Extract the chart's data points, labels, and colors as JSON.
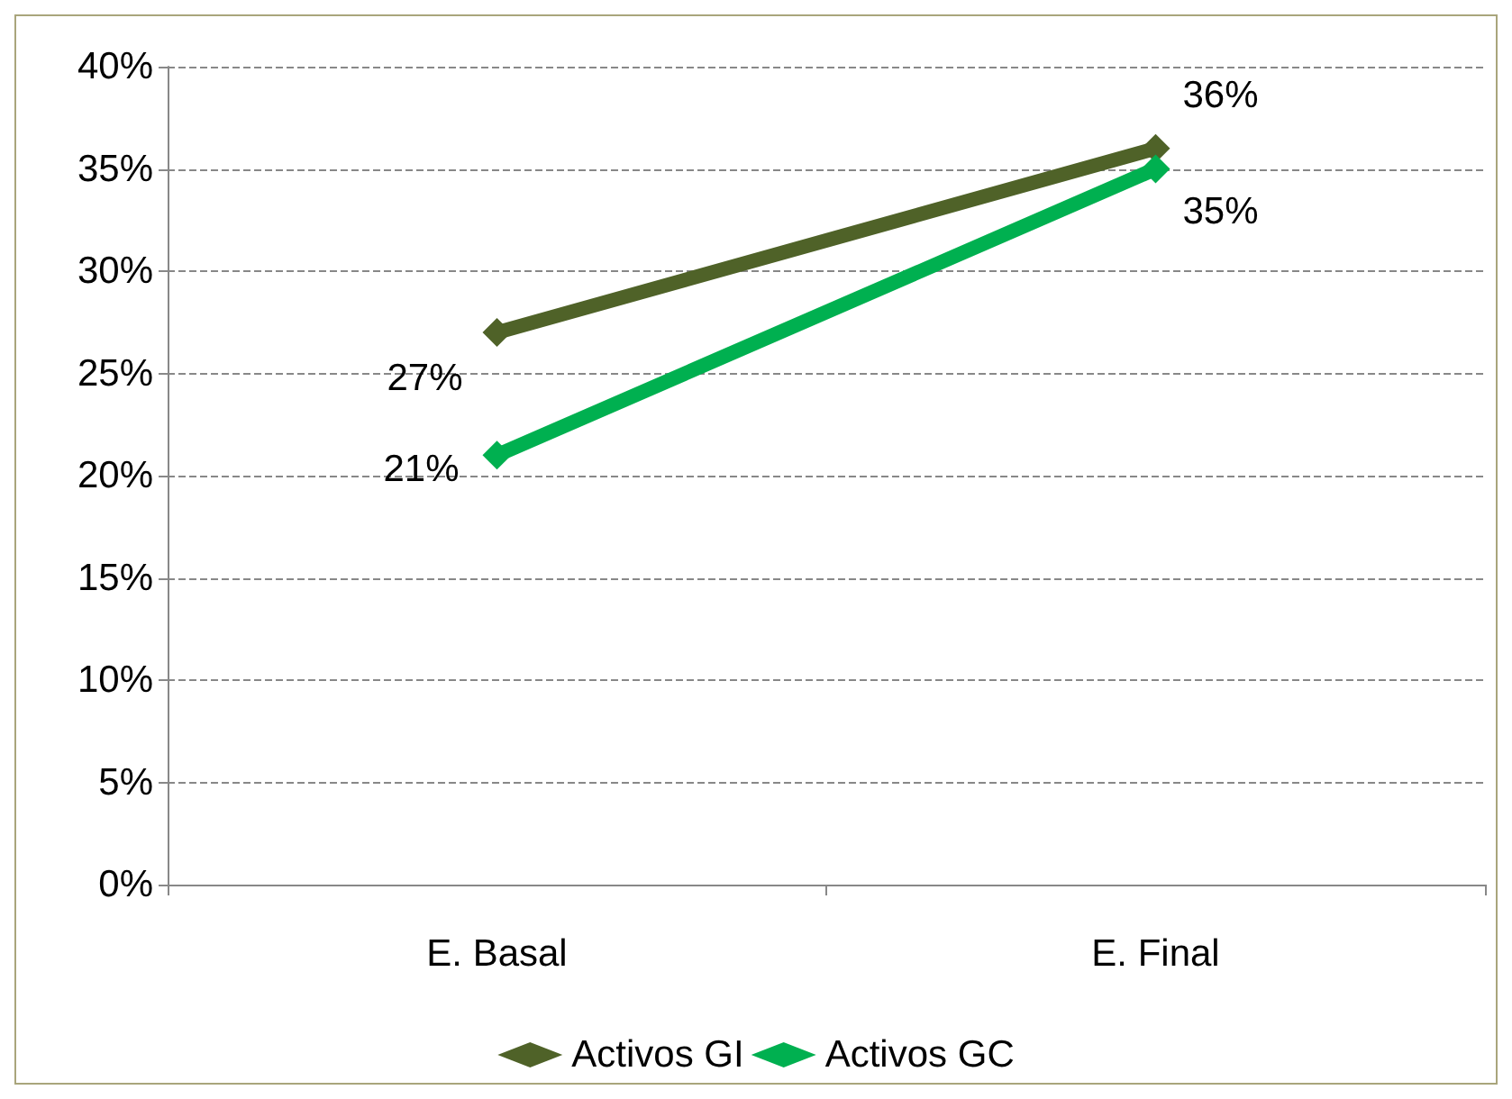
{
  "chart_data": {
    "type": "line",
    "categories": [
      "E. Basal",
      "E. Final"
    ],
    "series": [
      {
        "name": "Activos GI",
        "color": "#4f6228",
        "values": [
          27,
          36
        ],
        "value_labels": [
          "27%",
          "36%"
        ]
      },
      {
        "name": "Activos GC",
        "color": "#00b050",
        "values": [
          21,
          35
        ],
        "value_labels": [
          "21%",
          "35%"
        ]
      }
    ],
    "ylim": [
      0,
      40
    ],
    "yticks": [
      {
        "value": 0,
        "label": "0%"
      },
      {
        "value": 5,
        "label": "5%"
      },
      {
        "value": 10,
        "label": "10%"
      },
      {
        "value": 15,
        "label": "15%"
      },
      {
        "value": 20,
        "label": "20%"
      },
      {
        "value": 25,
        "label": "25%"
      },
      {
        "value": 30,
        "label": "30%"
      },
      {
        "value": 35,
        "label": "35%"
      },
      {
        "value": 40,
        "label": "40%"
      }
    ],
    "grid": "y",
    "legend": "bottom",
    "marker": "diamond",
    "line_style": "solid"
  }
}
